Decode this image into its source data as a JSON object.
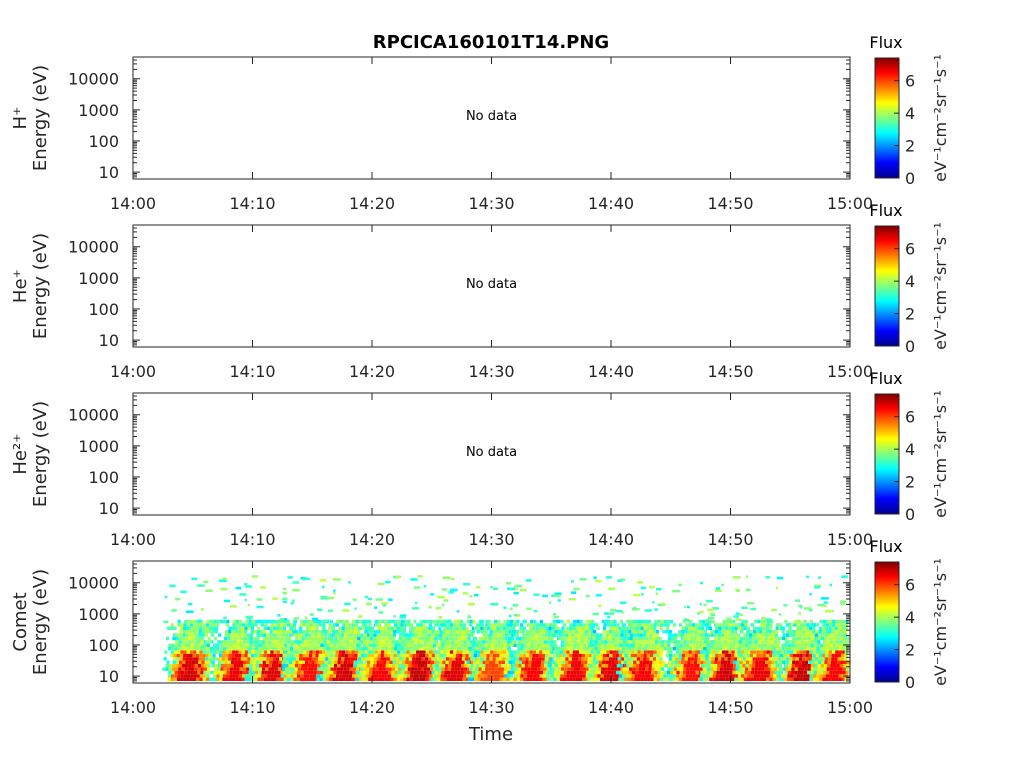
{
  "title": "RPCICA160101T14.PNG",
  "x_ticks": [
    "14:00",
    "14:10",
    "14:20",
    "14:30",
    "14:40",
    "14:50",
    "15:00"
  ],
  "x_label": "Time",
  "no_data_text": "No data",
  "colorbar": {
    "title": "Flux",
    "unit": "eV⁻¹cm⁻²sr⁻¹s⁻¹",
    "ticks": [
      "0",
      "2",
      "4",
      "6"
    ],
    "range": [
      0,
      7.4
    ],
    "colormap": "jet"
  },
  "chart_data": [
    {
      "type": "heatmap",
      "species": "H⁺",
      "ylabel": "Energy (eV)",
      "y_ticks": [
        "10",
        "100",
        "1000",
        "10000"
      ],
      "y_scale": "log",
      "xlim": [
        "14:00",
        "15:00"
      ],
      "ylim": [
        6,
        50000
      ],
      "has_data": false
    },
    {
      "type": "heatmap",
      "species": "He⁺",
      "ylabel": "Energy (eV)",
      "y_ticks": [
        "10",
        "100",
        "1000",
        "10000"
      ],
      "y_scale": "log",
      "xlim": [
        "14:00",
        "15:00"
      ],
      "ylim": [
        6,
        50000
      ],
      "has_data": false
    },
    {
      "type": "heatmap",
      "species": "He²⁺",
      "ylabel": "Energy (eV)",
      "y_ticks": [
        "10",
        "100",
        "1000",
        "10000"
      ],
      "y_scale": "log",
      "xlim": [
        "14:00",
        "15:00"
      ],
      "ylim": [
        6,
        50000
      ],
      "has_data": false
    },
    {
      "type": "heatmap",
      "species": "Comet",
      "ylabel": "Energy (eV)",
      "y_ticks": [
        "10",
        "100",
        "1000",
        "10000"
      ],
      "y_scale": "log",
      "xlim": [
        "14:00",
        "15:00"
      ],
      "ylim": [
        6,
        50000
      ],
      "has_data": true,
      "burst_times_min": [
        4.5,
        8.3,
        11.5,
        14.5,
        17.5,
        20.5,
        23.7,
        26.8,
        29.9,
        33.2,
        36.8,
        39.9,
        42.5,
        46.5,
        49.3,
        52.2,
        55.8,
        58.5
      ],
      "peak_flux": [
        6.8,
        6.6,
        6.7,
        6.4,
        6.8,
        6.5,
        6.9,
        6.7,
        6.0,
        6.5,
        6.6,
        6.7,
        6.5,
        6.4,
        6.8,
        6.6,
        6.9,
        6.5
      ]
    }
  ]
}
